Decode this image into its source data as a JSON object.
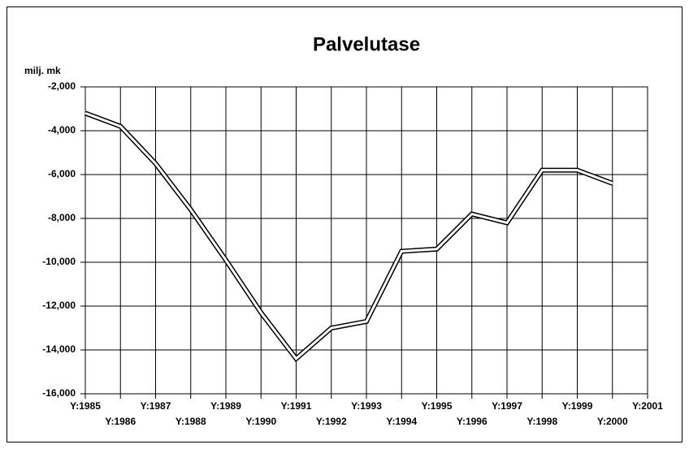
{
  "chart_data": {
    "type": "line",
    "title": "Palvelutase",
    "y_label": "milj. mk",
    "categories": [
      "Y:1985",
      "Y:1986",
      "Y:1987",
      "Y:1988",
      "Y:1989",
      "Y:1990",
      "Y:1991",
      "Y:1992",
      "Y:1993",
      "Y:1994",
      "Y:1995",
      "Y:1996",
      "Y:1997",
      "Y:1998",
      "Y:1999",
      "Y:2000",
      "Y:2001"
    ],
    "values": [
      -3200,
      -3800,
      -5500,
      -7600,
      -9900,
      -12300,
      -14400,
      -13000,
      -12700,
      -9500,
      -9400,
      -7800,
      -8200,
      -5800,
      -5800,
      -6400,
      null
    ],
    "color": "#000000",
    "ylim": [
      -16000,
      -2000
    ],
    "yticks": [
      {
        "value": -16000,
        "label": "-16,000"
      },
      {
        "value": -14000,
        "label": "-14,000"
      },
      {
        "value": -12000,
        "label": "-12,000"
      },
      {
        "value": -10000,
        "label": "-10,000"
      },
      {
        "value": -8000,
        "label": "-8,000"
      },
      {
        "value": -6000,
        "label": "-6,000"
      },
      {
        "value": -4000,
        "label": "-4,000"
      },
      {
        "value": -2000,
        "label": "-2,000"
      }
    ],
    "grid": true
  }
}
